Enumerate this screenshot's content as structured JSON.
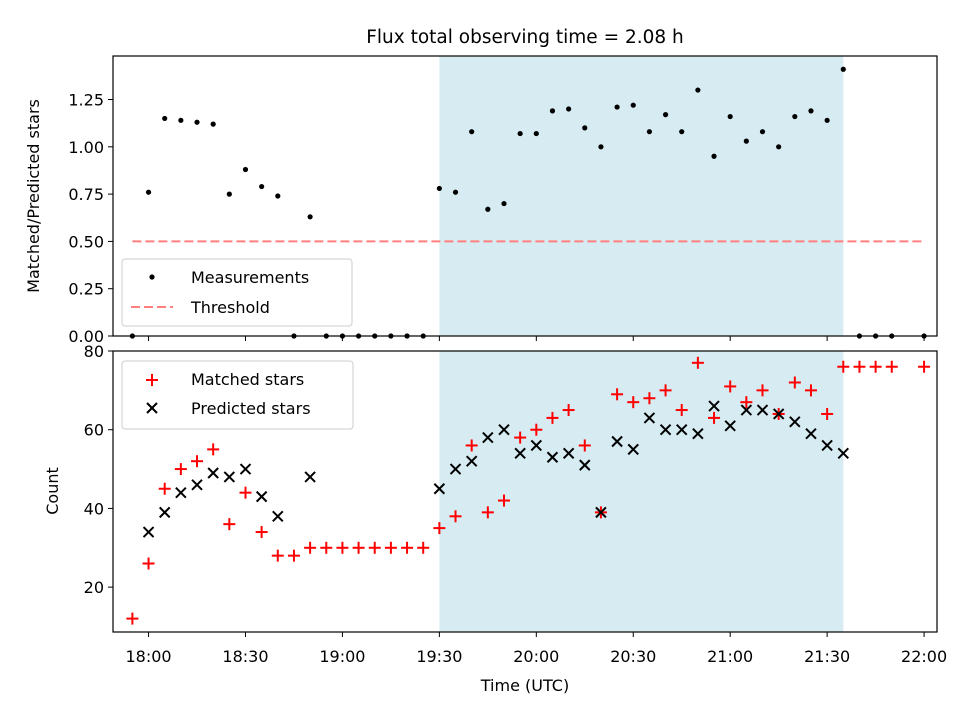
{
  "title": "Flux total observing time = 2.08 h",
  "colors": {
    "window": "#add8e6",
    "measurement": "#000000",
    "threshold": "#ff7f7f",
    "matched": "#ff0000",
    "predicted": "#000000"
  },
  "chart_data": [
    {
      "type": "scatter",
      "ylabel": "Matched/Predicted stars",
      "ylim": [
        0,
        1.48
      ],
      "yticks": [
        0.0,
        0.25,
        0.5,
        0.75,
        1.0,
        1.25
      ],
      "ytick_labels": [
        "0.00",
        "0.25",
        "0.50",
        "0.75",
        "1.00",
        "1.25"
      ],
      "xlim": [
        "17:49",
        "22:04"
      ],
      "shaded_window": [
        "19:30",
        "21:35"
      ],
      "legend": {
        "placement": "lower-left",
        "entries": [
          "Measurements",
          "Threshold"
        ]
      },
      "threshold": {
        "name": "Threshold",
        "value": 0.5,
        "x": [
          "17:55",
          "22:00"
        ]
      },
      "series": [
        {
          "name": "Measurements",
          "points": [
            [
              "17:55",
              0.0
            ],
            [
              "18:00",
              0.76
            ],
            [
              "18:05",
              1.15
            ],
            [
              "18:10",
              1.14
            ],
            [
              "18:15",
              1.13
            ],
            [
              "18:20",
              1.12
            ],
            [
              "18:25",
              0.75
            ],
            [
              "18:30",
              0.88
            ],
            [
              "18:35",
              0.79
            ],
            [
              "18:40",
              0.74
            ],
            [
              "18:45",
              0.0
            ],
            [
              "18:50",
              0.63
            ],
            [
              "18:55",
              0.0
            ],
            [
              "19:00",
              0.0
            ],
            [
              "19:05",
              0.0
            ],
            [
              "19:10",
              0.0
            ],
            [
              "19:15",
              0.0
            ],
            [
              "19:20",
              0.0
            ],
            [
              "19:25",
              0.0
            ],
            [
              "19:30",
              0.78
            ],
            [
              "19:35",
              0.76
            ],
            [
              "19:40",
              1.08
            ],
            [
              "19:45",
              0.67
            ],
            [
              "19:50",
              0.7
            ],
            [
              "19:55",
              1.07
            ],
            [
              "20:00",
              1.07
            ],
            [
              "20:05",
              1.19
            ],
            [
              "20:10",
              1.2
            ],
            [
              "20:15",
              1.1
            ],
            [
              "20:20",
              1.0
            ],
            [
              "20:25",
              1.21
            ],
            [
              "20:30",
              1.22
            ],
            [
              "20:35",
              1.08
            ],
            [
              "20:40",
              1.17
            ],
            [
              "20:45",
              1.08
            ],
            [
              "20:50",
              1.3
            ],
            [
              "20:55",
              0.95
            ],
            [
              "21:00",
              1.16
            ],
            [
              "21:05",
              1.03
            ],
            [
              "21:10",
              1.08
            ],
            [
              "21:15",
              1.0
            ],
            [
              "21:20",
              1.16
            ],
            [
              "21:25",
              1.19
            ],
            [
              "21:30",
              1.14
            ],
            [
              "21:35",
              1.41
            ],
            [
              "21:40",
              0.0
            ],
            [
              "21:45",
              0.0
            ],
            [
              "21:50",
              0.0
            ],
            [
              "22:00",
              0.0
            ]
          ]
        }
      ]
    },
    {
      "type": "scatter",
      "xlabel": "Time (UTC)",
      "ylabel": "Count",
      "ylim": [
        8.6,
        80
      ],
      "yticks": [
        20,
        40,
        60,
        80
      ],
      "ytick_labels": [
        "20",
        "40",
        "60",
        "80"
      ],
      "xlim": [
        "17:49",
        "22:04"
      ],
      "xticks": [
        "18:00",
        "18:30",
        "19:00",
        "19:30",
        "20:00",
        "20:30",
        "21:00",
        "21:30",
        "22:00"
      ],
      "xtick_labels": [
        "18:00",
        "18:30",
        "19:00",
        "19:30",
        "20:00",
        "20:30",
        "21:00",
        "21:30",
        "22:00"
      ],
      "shaded_window": [
        "19:30",
        "21:35"
      ],
      "legend": {
        "placement": "upper-left",
        "entries": [
          "Matched stars",
          "Predicted stars"
        ]
      },
      "series": [
        {
          "name": "Matched stars",
          "marker": "plus",
          "points": [
            [
              "17:55",
              12
            ],
            [
              "18:00",
              26
            ],
            [
              "18:05",
              45
            ],
            [
              "18:10",
              50
            ],
            [
              "18:15",
              52
            ],
            [
              "18:20",
              55
            ],
            [
              "18:25",
              36
            ],
            [
              "18:30",
              44
            ],
            [
              "18:35",
              34
            ],
            [
              "18:40",
              28
            ],
            [
              "18:45",
              28
            ],
            [
              "18:50",
              30
            ],
            [
              "18:55",
              30
            ],
            [
              "19:00",
              30
            ],
            [
              "19:05",
              30
            ],
            [
              "19:10",
              30
            ],
            [
              "19:15",
              30
            ],
            [
              "19:20",
              30
            ],
            [
              "19:25",
              30
            ],
            [
              "19:30",
              35
            ],
            [
              "19:35",
              38
            ],
            [
              "19:40",
              56
            ],
            [
              "19:45",
              39
            ],
            [
              "19:50",
              42
            ],
            [
              "19:55",
              58
            ],
            [
              "20:00",
              60
            ],
            [
              "20:05",
              63
            ],
            [
              "20:10",
              65
            ],
            [
              "20:15",
              56
            ],
            [
              "20:20",
              39
            ],
            [
              "20:25",
              69
            ],
            [
              "20:30",
              67
            ],
            [
              "20:35",
              68
            ],
            [
              "20:40",
              70
            ],
            [
              "20:45",
              65
            ],
            [
              "20:50",
              77
            ],
            [
              "20:55",
              63
            ],
            [
              "21:00",
              71
            ],
            [
              "21:05",
              67
            ],
            [
              "21:10",
              70
            ],
            [
              "21:15",
              64
            ],
            [
              "21:20",
              72
            ],
            [
              "21:25",
              70
            ],
            [
              "21:30",
              64
            ],
            [
              "21:35",
              76
            ],
            [
              "21:40",
              76
            ],
            [
              "21:45",
              76
            ],
            [
              "21:50",
              76
            ],
            [
              "22:00",
              76
            ]
          ]
        },
        {
          "name": "Predicted stars",
          "marker": "cross",
          "points": [
            [
              "18:00",
              34
            ],
            [
              "18:05",
              39
            ],
            [
              "18:10",
              44
            ],
            [
              "18:15",
              46
            ],
            [
              "18:20",
              49
            ],
            [
              "18:25",
              48
            ],
            [
              "18:30",
              50
            ],
            [
              "18:35",
              43
            ],
            [
              "18:40",
              38
            ],
            [
              "18:50",
              48
            ],
            [
              "19:30",
              45
            ],
            [
              "19:35",
              50
            ],
            [
              "19:40",
              52
            ],
            [
              "19:45",
              58
            ],
            [
              "19:50",
              60
            ],
            [
              "19:55",
              54
            ],
            [
              "20:00",
              56
            ],
            [
              "20:05",
              53
            ],
            [
              "20:10",
              54
            ],
            [
              "20:15",
              51
            ],
            [
              "20:20",
              39
            ],
            [
              "20:25",
              57
            ],
            [
              "20:30",
              55
            ],
            [
              "20:35",
              63
            ],
            [
              "20:40",
              60
            ],
            [
              "20:45",
              60
            ],
            [
              "20:50",
              59
            ],
            [
              "20:55",
              66
            ],
            [
              "21:00",
              61
            ],
            [
              "21:05",
              65
            ],
            [
              "21:10",
              65
            ],
            [
              "21:15",
              64
            ],
            [
              "21:20",
              62
            ],
            [
              "21:25",
              59
            ],
            [
              "21:30",
              56
            ],
            [
              "21:35",
              54
            ]
          ]
        }
      ]
    }
  ]
}
